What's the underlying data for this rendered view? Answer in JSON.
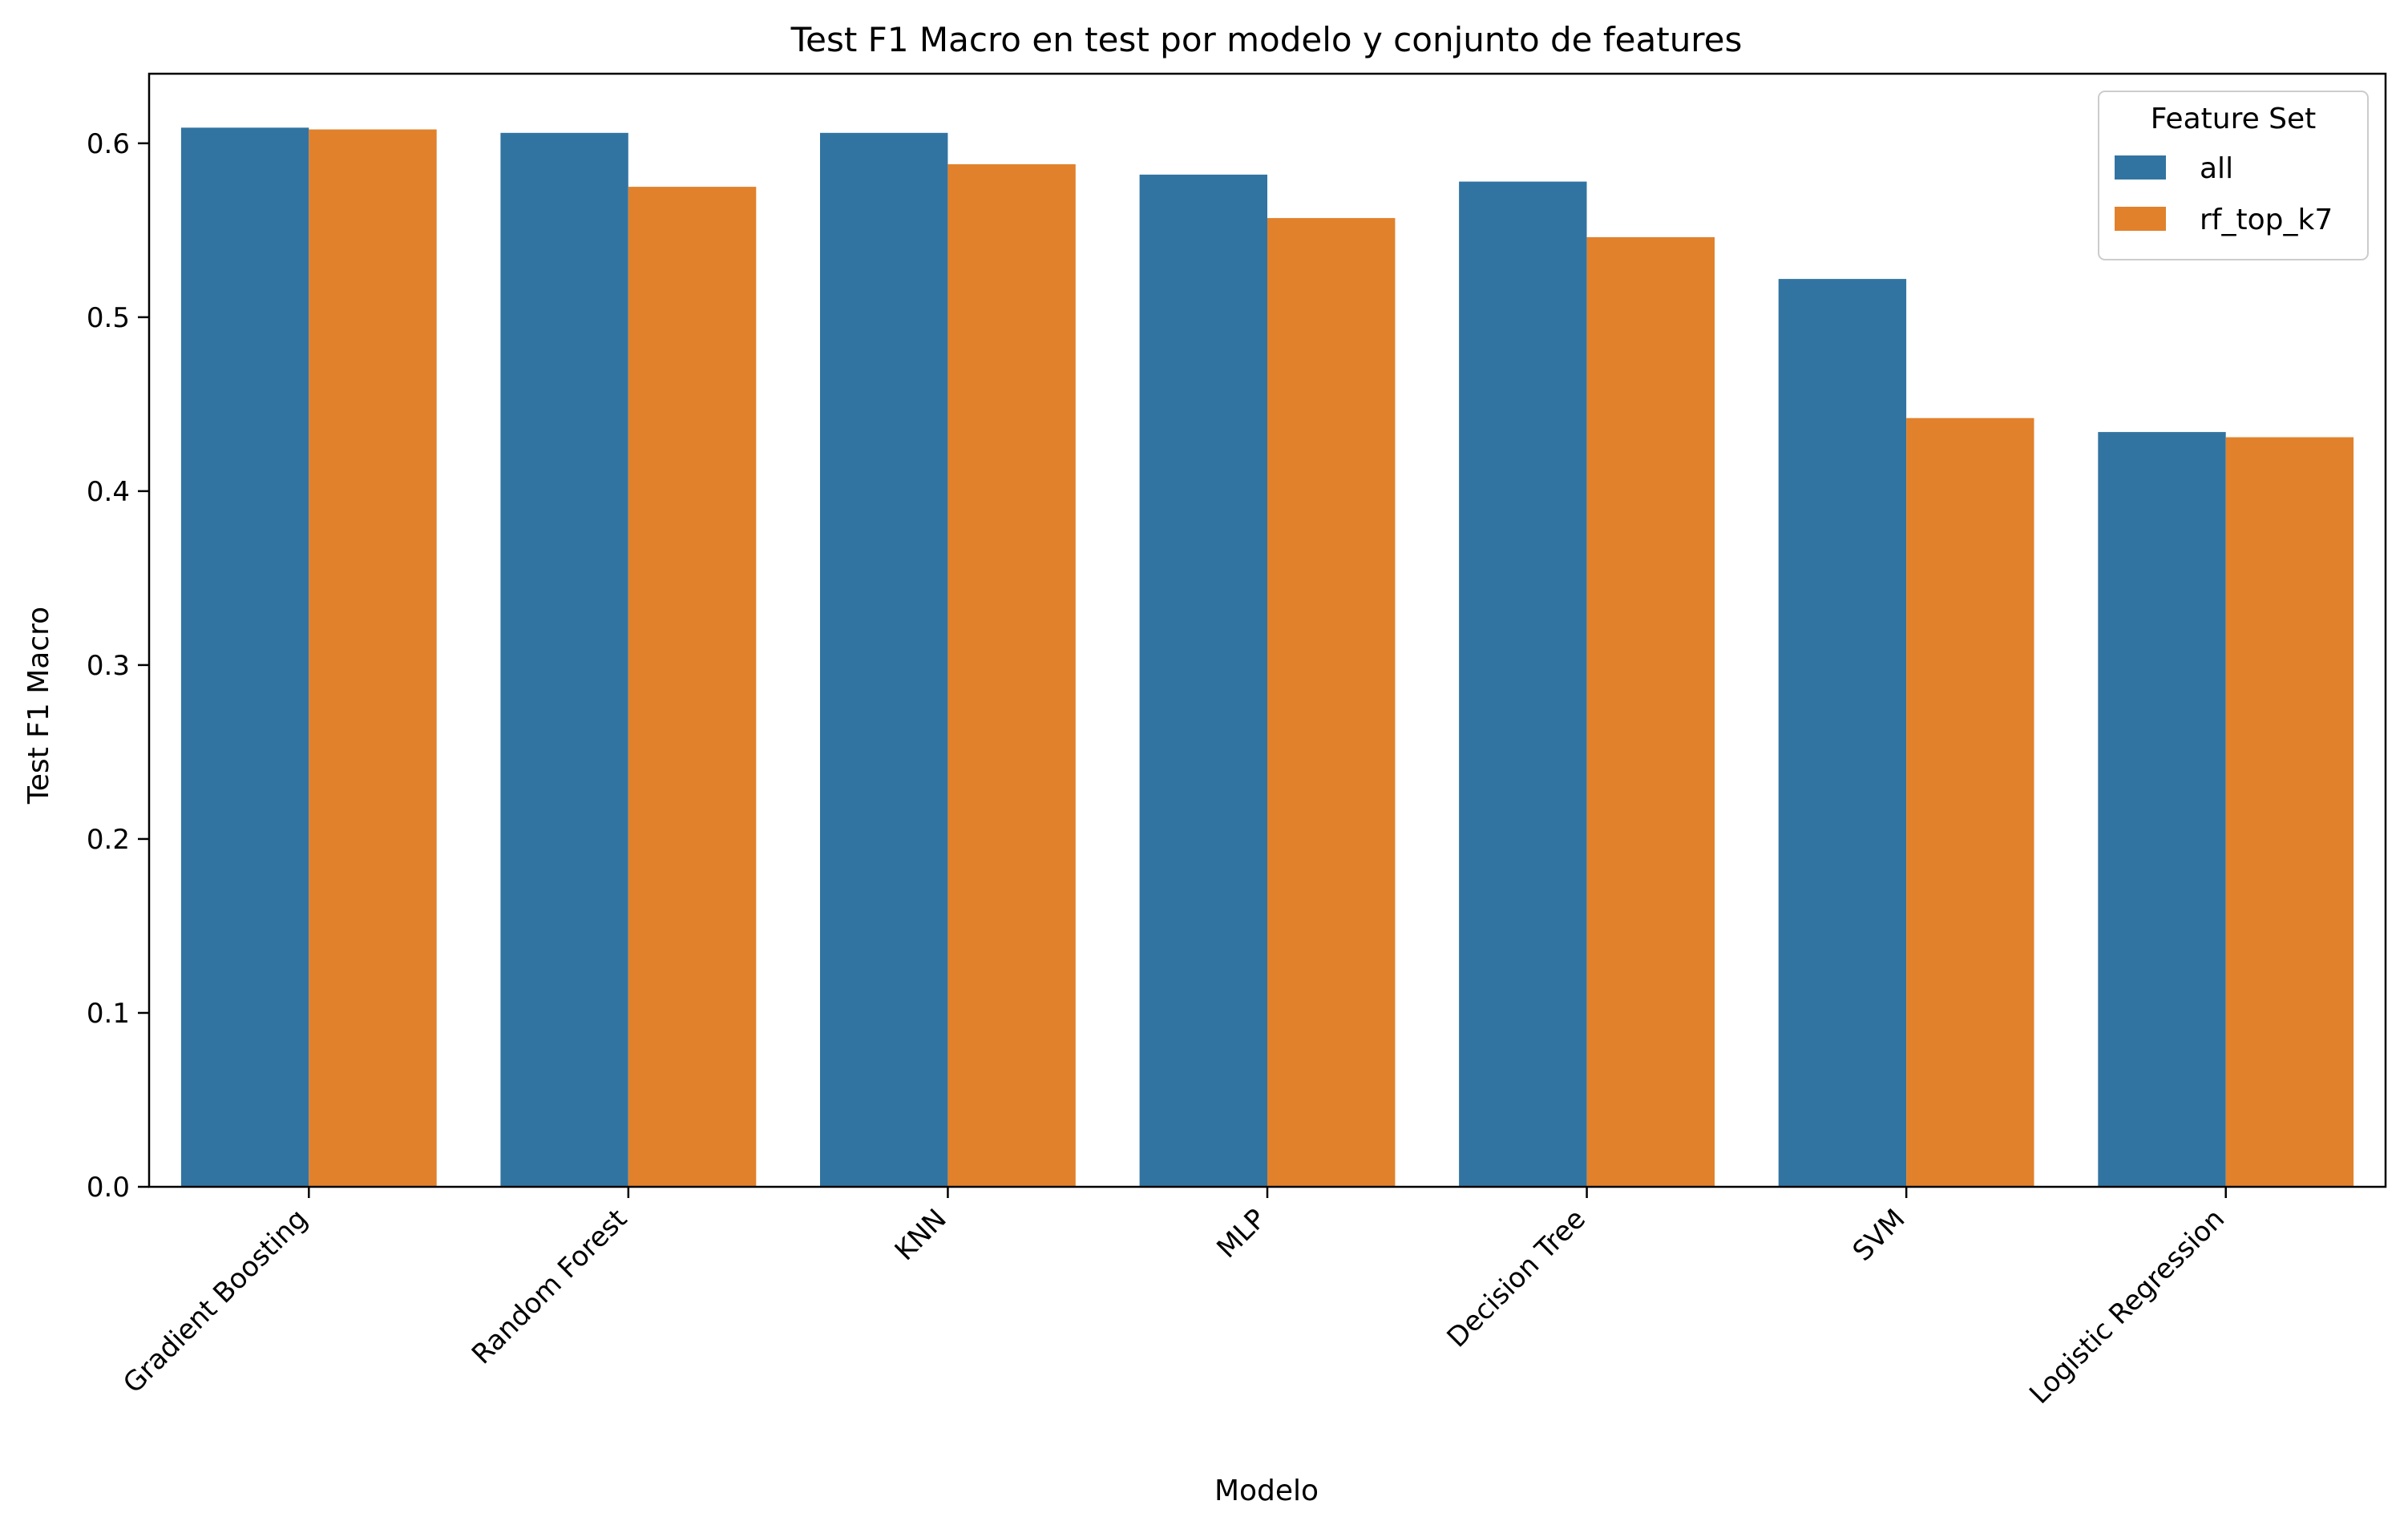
{
  "chart_data": {
    "type": "bar",
    "title": "Test F1 Macro en test por modelo y conjunto de features",
    "xlabel": "Modelo",
    "ylabel": "Test F1 Macro",
    "ylim": [
      0,
      0.64
    ],
    "yticks": [
      "0.0",
      "0.1",
      "0.2",
      "0.3",
      "0.4",
      "0.5",
      "0.6"
    ],
    "categories": [
      "Gradient Boosting",
      "Random Forest",
      "KNN",
      "MLP",
      "Decision Tree",
      "SVM",
      "Logistic Regression"
    ],
    "series": [
      {
        "name": "all",
        "color": "#3274a1",
        "values": [
          0.609,
          0.606,
          0.606,
          0.582,
          0.578,
          0.522,
          0.434
        ]
      },
      {
        "name": "rf_top_k7",
        "color": "#e1812c",
        "values": [
          0.608,
          0.575,
          0.588,
          0.557,
          0.546,
          0.442,
          0.431
        ]
      }
    ],
    "legend": {
      "title": "Feature Set",
      "placement": "top-right"
    },
    "grid": false
  }
}
